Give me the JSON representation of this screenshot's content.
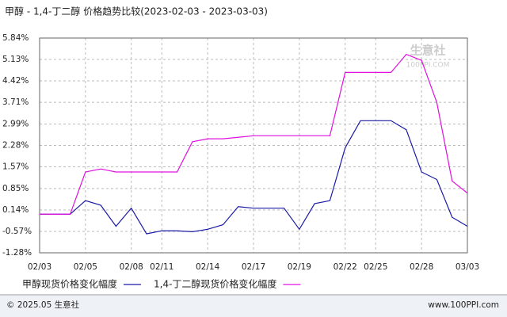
{
  "chart_data": {
    "type": "line",
    "title": "甲醇 - 1,4-丁二醇 价格趋势比较(2023-02-03 - 2023-03-03)",
    "watermark": "生意社",
    "watermark_sub": "100PPI.COM",
    "footer_left": "© 2025.05 生意社",
    "footer_right": "www.100PPI.com",
    "categories": [
      "02/03",
      null,
      null,
      "02/05",
      null,
      null,
      "02/08",
      null,
      "02/11",
      null,
      null,
      "02/14",
      null,
      null,
      "02/17",
      null,
      null,
      "02/19",
      null,
      null,
      "02/22",
      null,
      "02/25",
      null,
      null,
      "02/28",
      null,
      null,
      "03/03"
    ],
    "series": [
      {
        "name": "甲醇现货价格变化幅度",
        "color": "#1a1aa6",
        "values": [
          0,
          0,
          0,
          0.45,
          0.3,
          -0.4,
          0.2,
          -0.65,
          -0.55,
          -0.55,
          -0.58,
          -0.5,
          -0.35,
          0.25,
          0.2,
          0.2,
          0.2,
          -0.5,
          0.35,
          0.45,
          2.2,
          3.1,
          3.1,
          3.1,
          2.8,
          1.4,
          1.15,
          -0.1,
          -0.4
        ]
      },
      {
        "name": "1,4-丁二醇现货价格变化幅度",
        "color": "#e010e0",
        "values": [
          0,
          0,
          0,
          1.4,
          1.5,
          1.4,
          1.4,
          1.4,
          1.4,
          1.4,
          2.4,
          2.5,
          2.5,
          2.55,
          2.6,
          2.6,
          2.6,
          2.6,
          2.6,
          2.6,
          4.7,
          4.7,
          4.7,
          4.7,
          5.3,
          5.1,
          3.7,
          1.1,
          0.7
        ]
      }
    ],
    "ylim": [
      -1.28,
      5.84
    ],
    "yticks": [
      {
        "value": 5.84,
        "label": "5.84%"
      },
      {
        "value": 5.13,
        "label": "5.13%"
      },
      {
        "value": 4.42,
        "label": "4.42%"
      },
      {
        "value": 3.71,
        "label": "3.71%"
      },
      {
        "value": 2.99,
        "label": "2.99%"
      },
      {
        "value": 2.28,
        "label": "2.28%"
      },
      {
        "value": 1.57,
        "label": "1.57%"
      },
      {
        "value": 0.85,
        "label": "0.85%"
      },
      {
        "value": 0.14,
        "label": "0.14%"
      },
      {
        "value": -0.57,
        "label": "-0.57%"
      },
      {
        "value": -1.28,
        "label": "-1.28%"
      }
    ],
    "grid": true
  }
}
